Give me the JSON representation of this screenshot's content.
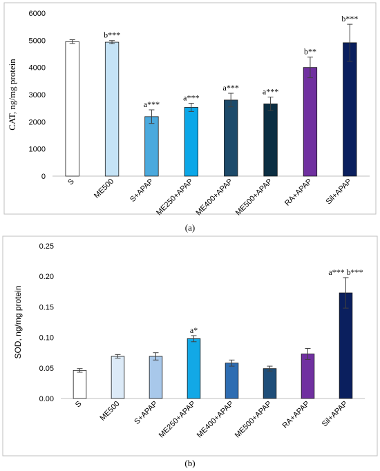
{
  "chart_data": [
    {
      "type": "bar",
      "panel": "(a)",
      "ylabel": "CAT, ng/mg protein",
      "xlabel": "",
      "ylim": [
        0,
        6000
      ],
      "yticks": [
        "0",
        "1000",
        "2000",
        "3000",
        "4000",
        "5000",
        "6000"
      ],
      "grid": false,
      "categories": [
        "S",
        "ME500",
        "S+APAP",
        "ME250+APAP",
        "ME400+APAP",
        "ME500+APAP",
        "RA+APAP",
        "Sil+APAP"
      ],
      "values": [
        4950,
        4930,
        2190,
        2530,
        2800,
        2660,
        4000,
        4910
      ],
      "errors": [
        70,
        60,
        250,
        150,
        250,
        250,
        380,
        680
      ],
      "annotations": [
        "",
        "b***",
        "a***",
        "a***",
        "a***",
        "a***",
        "b**",
        "b***"
      ],
      "colors": [
        "#ffffff",
        "#c5e3f6",
        "#4ba9dd",
        "#0ba7e8",
        "#1d4a6a",
        "#0b2e42",
        "#7030a0",
        "#0a1f5e"
      ]
    },
    {
      "type": "bar",
      "panel": "(b)",
      "ylabel": "SOD, ng/mg protein",
      "xlabel": "",
      "ylim": [
        0,
        0.25
      ],
      "yticks": [
        "0.00",
        "0.05",
        "0.10",
        "0.15",
        "0.20",
        "0.25"
      ],
      "grid": false,
      "categories": [
        "S",
        "ME500",
        "S+APAP",
        "ME250+APAP",
        "ME400+APAP",
        "ME500+APAP",
        "RA+APAP",
        "Sil+APAP"
      ],
      "values": [
        0.046,
        0.069,
        0.069,
        0.098,
        0.058,
        0.049,
        0.073,
        0.173
      ],
      "errors": [
        0.003,
        0.003,
        0.006,
        0.005,
        0.005,
        0.004,
        0.009,
        0.025
      ],
      "annotations": [
        "",
        "",
        "",
        "a*",
        "",
        "",
        "",
        "a*** b***"
      ],
      "colors": [
        "#ffffff",
        "#dceaf7",
        "#a8c8ea",
        "#12a8e6",
        "#2e6db2",
        "#1f4e79",
        "#7030a0",
        "#0a1f5e"
      ]
    }
  ]
}
